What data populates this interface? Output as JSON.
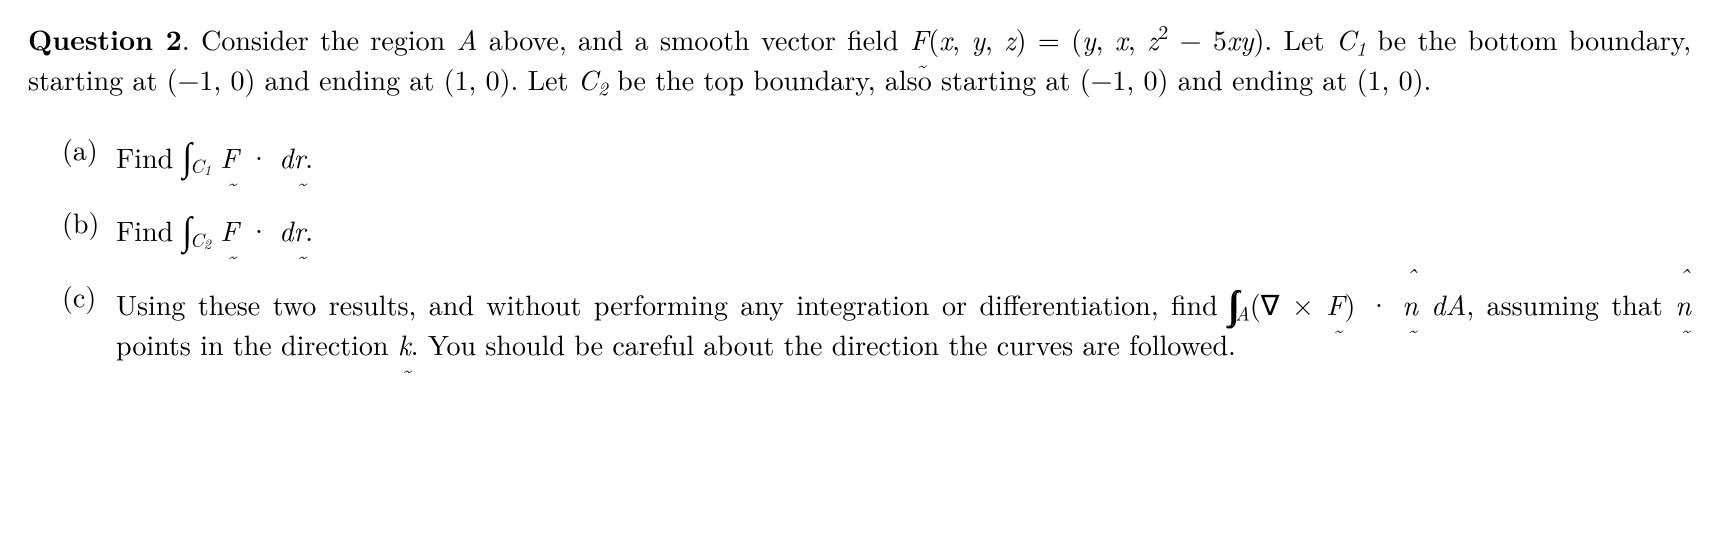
{
  "text_color": "#000000",
  "background_color": "#ffffff",
  "font_family": "Latin Modern Roman / Computer Modern (serif)",
  "base_font_size_pt": 21,
  "line_height": 1.35,
  "question": {
    "label": "Question 2",
    "period": ". ",
    "sentence1_a": "Consider the region ",
    "A": "A",
    "sentence1_b": " above, and a smooth vector field ",
    "F": "F",
    "lparen": "(",
    "x": "x",
    "comma1": ", ",
    "y": "y",
    "comma2": ", ",
    "z": "z",
    "rparen_eq_l": ") = (",
    "y2": "y",
    "comma3": ", ",
    "x2": "x",
    "comma4": ", ",
    "z2": "z",
    "sq": "2",
    "minus": " − 5",
    "x3": "x",
    "y3": "y",
    "rparen2": ").",
    "sentence2_a": "Let ",
    "C1": "C",
    "C1sub": "1",
    "sentence2_b": " be the bottom boundary, starting at (−1, 0) and ending at (1, 0).  Let ",
    "C2": "C",
    "C2sub": "2",
    "sentence2_c": " be the top boundary, also starting at (−1, 0) and ending at (1, 0)."
  },
  "parts": {
    "a": {
      "label": "(a)",
      "find": "Find ",
      "int": "∫",
      "C": "C",
      "Csub": "1",
      "sp": " ",
      "F": "F",
      "dot": " · ",
      "d": "d",
      "r": "r",
      "end": "."
    },
    "b": {
      "label": "(b)",
      "find": "Find ",
      "int": "∫",
      "C": "C",
      "Csub": "2",
      "sp": " ",
      "F": "F",
      "dot": " · ",
      "d": "d",
      "r": "r",
      "end": "."
    },
    "c": {
      "label": "(c)",
      "lead": "Using these two results, and without performing any integration or differentiation, find ",
      "int1": "∫",
      "int2": "∫",
      "A": "A",
      "lparen": "(",
      "nabla": "∇",
      "times": " × ",
      "F": "F",
      "rparen_dot": ") · ",
      "nhat": "n",
      "sp_dA": " d",
      "Avar": "A",
      "tail1": ", assuming that ",
      "nhat2": "n",
      "tail2": " points in the direction ",
      "k": "k",
      "tail3": ". You should be careful about the direction the curves are followed."
    }
  }
}
